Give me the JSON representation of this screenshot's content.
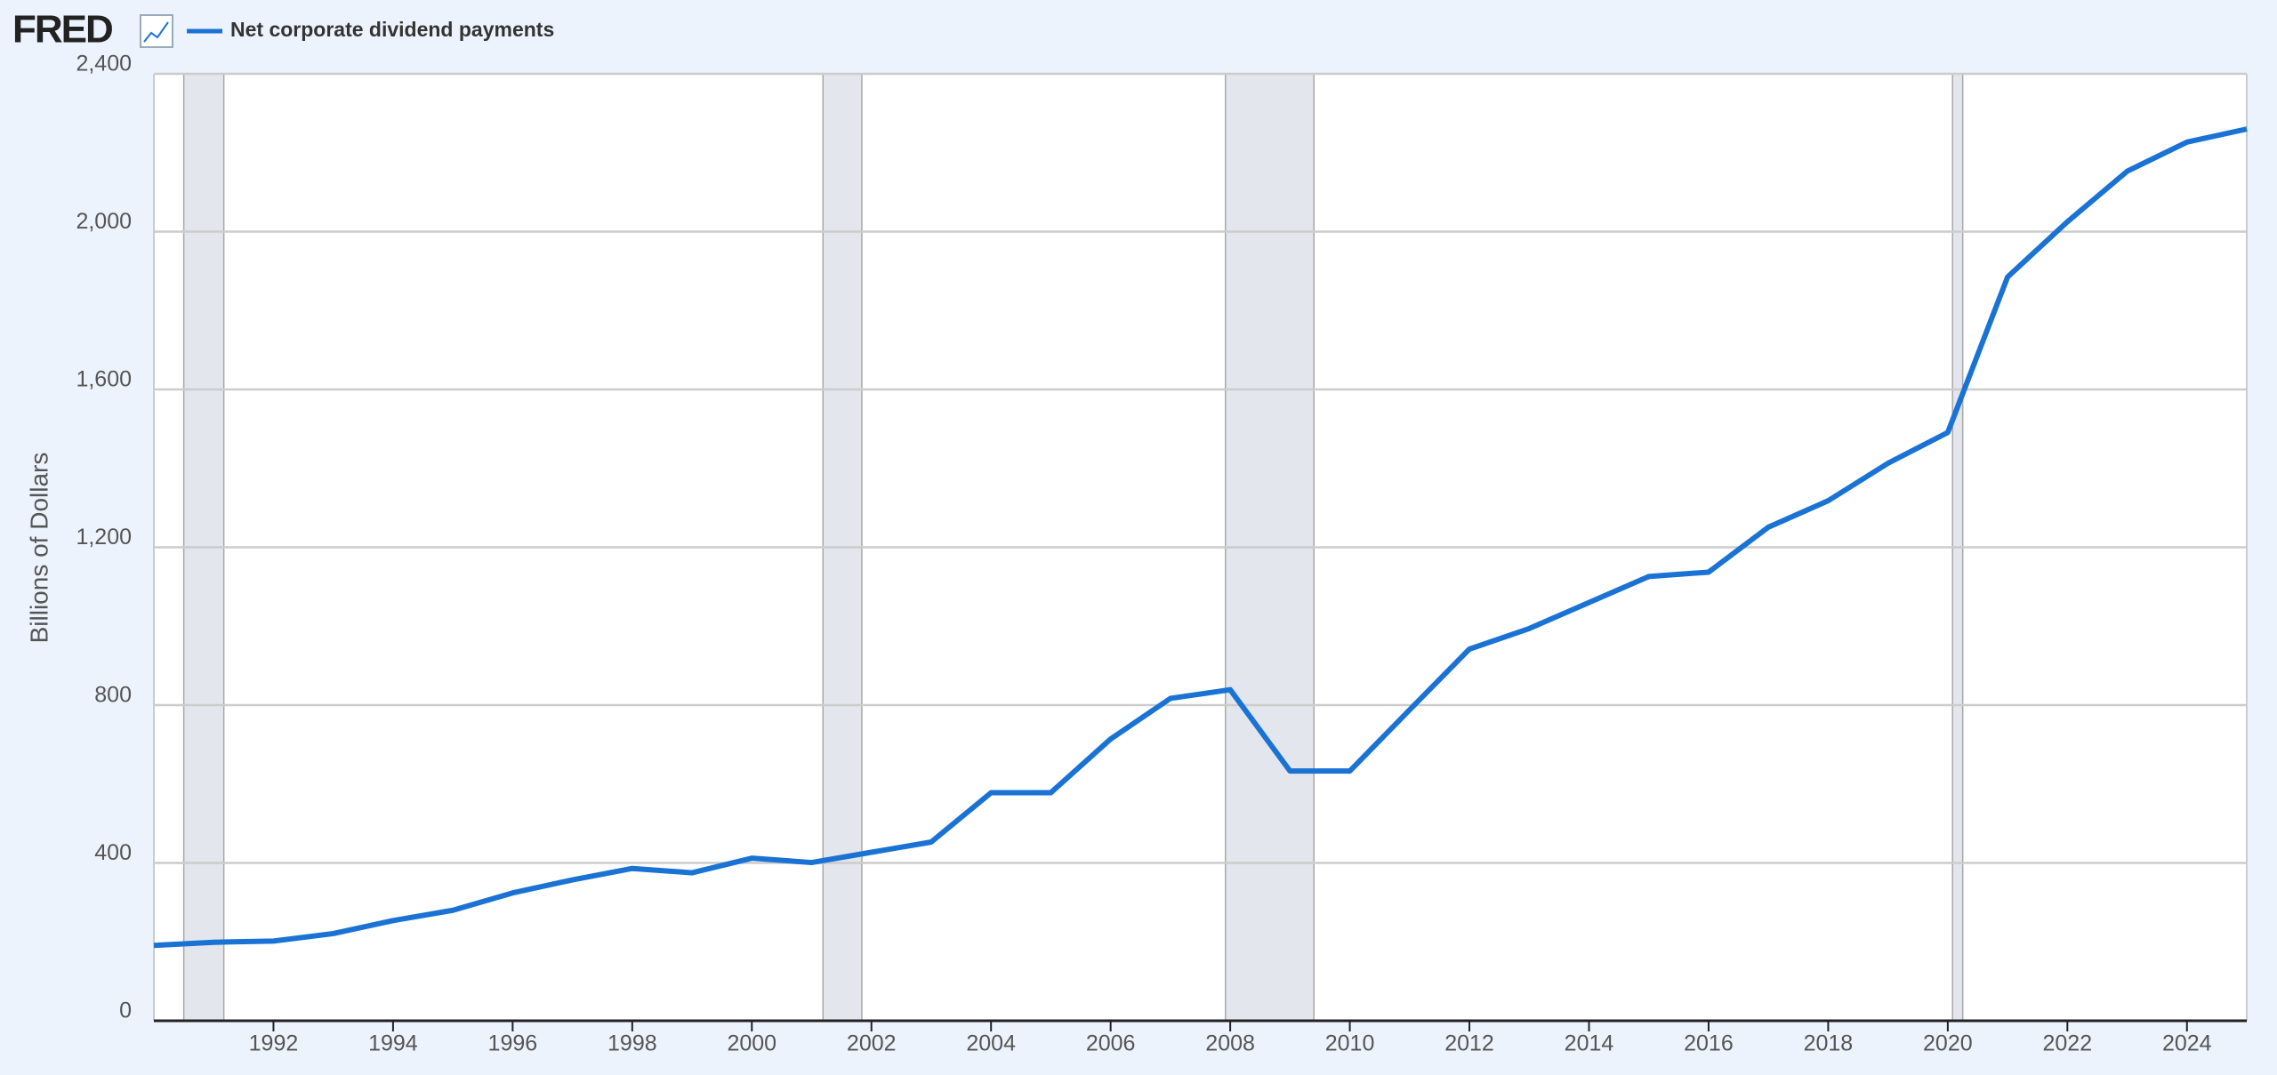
{
  "chart_data": {
    "type": "line",
    "logo": "FRED",
    "y_label": "Billions of Dollars",
    "x": [
      1990,
      1991,
      1992,
      1993,
      1994,
      1995,
      1996,
      1997,
      1998,
      1999,
      2000,
      2001,
      2002,
      2003,
      2004,
      2005,
      2006,
      2007,
      2008,
      2009,
      2010,
      2011,
      2012,
      2013,
      2014,
      2015,
      2016,
      2017,
      2018,
      2019,
      2020,
      2021,
      2022,
      2023,
      2024,
      2025
    ],
    "series": [
      {
        "name": "Net corporate dividend payments",
        "color": "#1a73d4",
        "values": [
          191,
          199,
          202,
          221,
          254,
          280,
          324,
          357,
          386,
          375,
          412,
          401,
          427,
          453,
          578,
          578,
          714,
          817,
          839,
          633,
          633,
          788,
          942,
          994,
          1060,
          1126,
          1137,
          1251,
          1318,
          1413,
          1491,
          1885,
          2025,
          2153,
          2227,
          2260
        ]
      }
    ],
    "recessions": [
      [
        1990.5,
        1991.17
      ],
      [
        2001.19,
        2001.84
      ],
      [
        2007.92,
        2009.4
      ],
      [
        2020.08,
        2020.25
      ]
    ],
    "xlim": [
      1990,
      2025
    ],
    "xticks": [
      1992,
      1994,
      1996,
      1998,
      2000,
      2002,
      2004,
      2006,
      2008,
      2010,
      2012,
      2014,
      2016,
      2018,
      2020,
      2022,
      2024
    ],
    "ylim": [
      0,
      2400
    ],
    "yticks": [
      0,
      400,
      800,
      {
        "value": 1200,
        "label": "1,200"
      },
      {
        "value": 1600,
        "label": "1,600"
      },
      {
        "value": 2000,
        "label": "2,000"
      },
      {
        "value": 2400,
        "label": "2,400"
      }
    ],
    "grid": true
  }
}
